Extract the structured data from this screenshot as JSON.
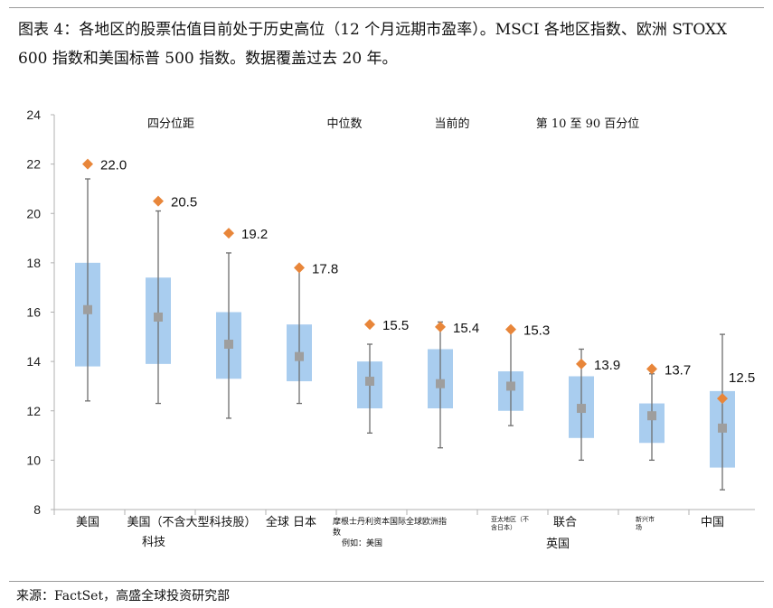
{
  "header": {
    "title": "图表 4：各地区的股票估值目前处于历史高位（12 个月远期市盈率）。MSCI 各地区指数、欧洲 STOXX 600 指数和美国标普 500 指数。数据覆盖过去 20 年。"
  },
  "footer": {
    "source": "来源：FactSet，高盛全球投资研究部"
  },
  "chart_data": {
    "type": "box",
    "title": "",
    "xlabel": "",
    "ylabel": "",
    "ylim": [
      8,
      24
    ],
    "yticks": [
      8,
      10,
      12,
      14,
      16,
      18,
      20,
      22,
      24
    ],
    "grid": false,
    "legend_position": "top",
    "legend": [
      "四分位距",
      "中位数",
      "当前的",
      "第 10 至 90 百分位"
    ],
    "colors": {
      "iqr_box": "#a9cdef",
      "median": "#9e9e9e",
      "current": "#e8863a",
      "whisker": "#6e6e6e",
      "axis": "#b0b0b0"
    },
    "categories": [
      {
        "label": [
          "美国"
        ],
        "label_size": 13,
        "p10": 12.4,
        "q1": 13.8,
        "median": 16.1,
        "q3": 18.0,
        "p90": 21.4,
        "current": 22.0,
        "current_label": "22.0"
      },
      {
        "label": [
          "美国（不含大型科技股）",
          "科技"
        ],
        "label_size": 13,
        "p10": 12.3,
        "q1": 13.9,
        "median": 15.8,
        "q3": 17.4,
        "p90": 20.1,
        "current": 20.5,
        "current_label": "20.5"
      },
      {
        "label": [
          "全球 日本"
        ],
        "label_size": 13,
        "p10": 11.7,
        "q1": 13.3,
        "median": 14.7,
        "q3": 16.0,
        "p90": 18.4,
        "current": 19.2,
        "current_label": "19.2"
      },
      {
        "label": [
          ""
        ],
        "label_size": 13,
        "p10": 12.3,
        "q1": 13.2,
        "median": 14.2,
        "q3": 15.5,
        "p90": 17.8,
        "current": 17.8,
        "current_label": "17.8"
      },
      {
        "label": [
          "摩根士丹利资本国际全球欧洲指",
          "数",
          "例如：美国"
        ],
        "label_size": 9,
        "p10": 11.1,
        "q1": 12.1,
        "median": 13.2,
        "q3": 14.0,
        "p90": 14.7,
        "current": 15.5,
        "current_label": "15.5"
      },
      {
        "label": [
          ""
        ],
        "label_size": 9,
        "p10": 10.5,
        "q1": 12.1,
        "median": 13.1,
        "q3": 14.5,
        "p90": 15.6,
        "current": 15.4,
        "current_label": "15.4"
      },
      {
        "label": [
          "亚太地区（不",
          "含日本）"
        ],
        "label_size": 7,
        "p10": 11.4,
        "q1": 12.0,
        "median": 13.0,
        "q3": 13.6,
        "p90": 15.2,
        "current": 15.3,
        "current_label": "15.3"
      },
      {
        "label": [
          "联合",
          "英国"
        ],
        "label_size": 13,
        "p10": 10.0,
        "q1": 10.9,
        "median": 12.1,
        "q3": 13.4,
        "p90": 14.5,
        "current": 13.9,
        "current_label": "13.9"
      },
      {
        "label": [
          "新兴市",
          "场"
        ],
        "label_size": 7,
        "p10": 10.0,
        "q1": 10.7,
        "median": 11.8,
        "q3": 12.3,
        "p90": 13.5,
        "current": 13.7,
        "current_label": "13.7"
      },
      {
        "label": [
          "中国"
        ],
        "label_size": 13,
        "p10": 8.8,
        "q1": 9.7,
        "median": 11.3,
        "q3": 12.8,
        "p90": 15.1,
        "current": 12.5,
        "current_label": "12.5"
      }
    ]
  }
}
